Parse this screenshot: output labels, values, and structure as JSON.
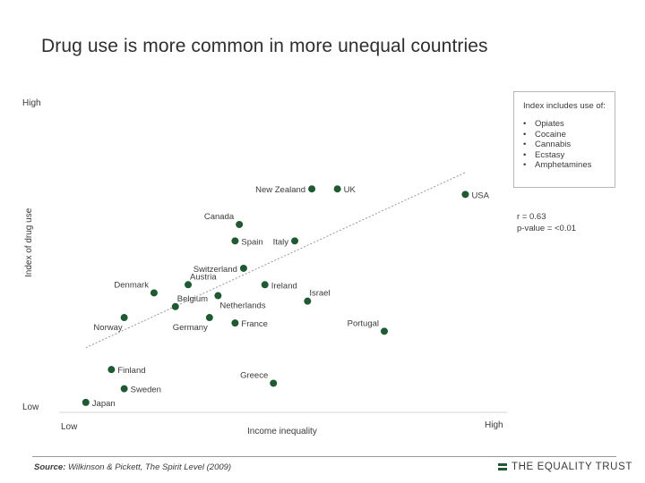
{
  "title": "Drug use is more common in more unequal countries",
  "legend": {
    "heading": "Index includes use of:",
    "items": [
      "Opiates",
      "Cocaine",
      "Cannabis",
      "Ecstasy",
      "Amphetamines"
    ]
  },
  "stats": {
    "r": "r = 0.63",
    "p": "p-value = <0.01"
  },
  "source": {
    "prefix": "Source:",
    "text": "Wilkinson & Pickett, The Spirit Level (2009)"
  },
  "brand": "THE EQUALITY TRUST",
  "colors": {
    "point": "#1f5a33",
    "trend": "#999999"
  },
  "chart_data": {
    "type": "scatter",
    "title": "Drug use is more common in more unequal countries",
    "xlabel": "Income inequality",
    "ylabel": "Index of drug use",
    "x_ticks": {
      "low": "Low",
      "high": "High"
    },
    "y_ticks": {
      "low": "Low",
      "high": "High"
    },
    "xlim": [
      0,
      100
    ],
    "ylim": [
      0,
      100
    ],
    "grid": false,
    "legend_position": "top-right",
    "trendline": {
      "x": [
        5,
        94
      ],
      "y": [
        22,
        86
      ]
    },
    "points": [
      {
        "name": "USA",
        "x": 94,
        "y": 78,
        "label_pos": "right"
      },
      {
        "name": "UK",
        "x": 64,
        "y": 80,
        "label_pos": "right"
      },
      {
        "name": "New Zealand",
        "x": 58,
        "y": 80,
        "label_pos": "left"
      },
      {
        "name": "Canada",
        "x": 41,
        "y": 67,
        "label_pos": "topleft"
      },
      {
        "name": "Spain",
        "x": 40,
        "y": 61,
        "label_pos": "right"
      },
      {
        "name": "Italy",
        "x": 54,
        "y": 61,
        "label_pos": "left"
      },
      {
        "name": "Switzerland",
        "x": 42,
        "y": 51,
        "label_pos": "left"
      },
      {
        "name": "Austria",
        "x": 29,
        "y": 45,
        "label_pos": "topright"
      },
      {
        "name": "Denmark",
        "x": 21,
        "y": 42,
        "label_pos": "topleft"
      },
      {
        "name": "Ireland",
        "x": 47,
        "y": 45,
        "label_pos": "right"
      },
      {
        "name": "Israel",
        "x": 57,
        "y": 39,
        "label_pos": "topright"
      },
      {
        "name": "Belgium",
        "x": 26,
        "y": 37,
        "label_pos": "topright"
      },
      {
        "name": "Netherlands",
        "x": 36,
        "y": 41,
        "label_pos": "below"
      },
      {
        "name": "Norway",
        "x": 14,
        "y": 33,
        "label_pos": "belowleft"
      },
      {
        "name": "Germany",
        "x": 34,
        "y": 33,
        "label_pos": "belowleft"
      },
      {
        "name": "France",
        "x": 40,
        "y": 31,
        "label_pos": "right"
      },
      {
        "name": "Portugal",
        "x": 75,
        "y": 28,
        "label_pos": "topleft"
      },
      {
        "name": "Finland",
        "x": 11,
        "y": 14,
        "label_pos": "right"
      },
      {
        "name": "Sweden",
        "x": 14,
        "y": 7,
        "label_pos": "right"
      },
      {
        "name": "Greece",
        "x": 49,
        "y": 9,
        "label_pos": "topleft"
      },
      {
        "name": "Japan",
        "x": 5,
        "y": 2,
        "label_pos": "right"
      }
    ]
  }
}
